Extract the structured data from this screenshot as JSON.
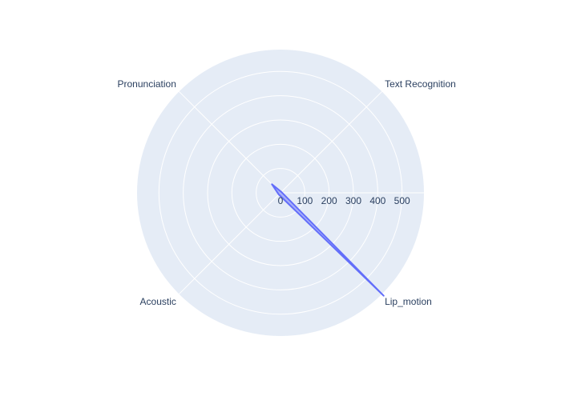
{
  "chart_data": {
    "type": "radar",
    "categories": [
      "Text Recognition",
      "Pronunciation",
      "Acoustic",
      "Lip_motion"
    ],
    "series": [
      {
        "values": [
          5,
          50,
          10,
          600
        ],
        "fill": "#636efa",
        "fill_opacity": 0.5,
        "line": "#636efa"
      }
    ],
    "radial_axis": {
      "range": [
        0,
        590
      ],
      "tick_values": [
        0,
        100,
        200,
        300,
        400,
        500
      ],
      "tick_labels": [
        "0",
        "100",
        "200",
        "300",
        "400",
        "500"
      ]
    },
    "angular_axis": {
      "start_angle_deg": 45,
      "direction": "counterclockwise"
    },
    "grid": true,
    "background_color": "#e5ecf6",
    "grid_color": "#ffffff",
    "text_color": "#2a3f5f"
  }
}
